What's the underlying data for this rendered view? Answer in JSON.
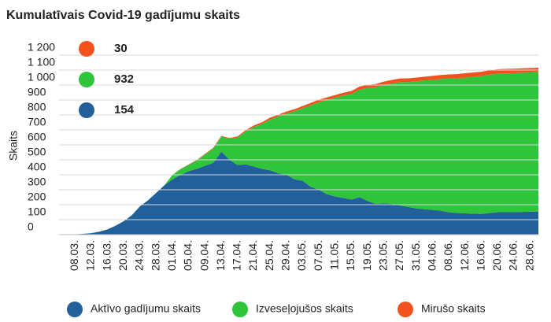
{
  "chart_data": {
    "type": "stacked_area",
    "title": "Kumulatīvais Covid-19 gadījumu skaits",
    "y_label": "Skaits",
    "categories": [
      null,
      "08.03.",
      null,
      "12.03.",
      null,
      "16.03.",
      null,
      "20.03.",
      null,
      "24.03.",
      null,
      "28.03.",
      null,
      "01.04.",
      null,
      "05.04.",
      null,
      "09.04.",
      null,
      "13.04.",
      null,
      "17.04.",
      null,
      "21.04.",
      null,
      "25.04.",
      null,
      "29.04.",
      null,
      "03.05.",
      null,
      "07.05.",
      null,
      "11.05.",
      null,
      "15.05.",
      null,
      "19.05.",
      null,
      "23.05.",
      null,
      "27.05.",
      null,
      "31.05.",
      null,
      "04.06.",
      null,
      "08.06.",
      null,
      "12.06.",
      null,
      "16.06.",
      null,
      "20.06.",
      null,
      "24.06.",
      null,
      "28.06.",
      null
    ],
    "series": [
      {
        "name": "Aktīvo gadījumu skaits",
        "color": "#22609c",
        "values": [
          0,
          2,
          5,
          10,
          20,
          35,
          60,
          90,
          130,
          190,
          230,
          280,
          330,
          370,
          400,
          425,
          440,
          460,
          480,
          555,
          500,
          465,
          470,
          455,
          440,
          430,
          410,
          400,
          370,
          360,
          320,
          300,
          270,
          255,
          245,
          235,
          250,
          225,
          205,
          210,
          205,
          195,
          185,
          175,
          170,
          165,
          160,
          150,
          145,
          142,
          140,
          138,
          145,
          150,
          150,
          150,
          152,
          153,
          154
        ]
      },
      {
        "name": "Izveseļojušos skaits",
        "color": "#2ec53b",
        "values": [
          0,
          0,
          0,
          0,
          0,
          0,
          0,
          0,
          0,
          0,
          0,
          0,
          0,
          30,
          39,
          43,
          57,
          76,
          95,
          100,
          140,
          185,
          220,
          265,
          300,
          340,
          380,
          410,
          455,
          485,
          545,
          585,
          630,
          660,
          685,
          705,
          720,
          755,
          780,
          790,
          805,
          825,
          835,
          850,
          860,
          870,
          880,
          893,
          900,
          908,
          915,
          922,
          924,
          926,
          928,
          929,
          930,
          931,
          932
        ]
      },
      {
        "name": "Mirušo skaits",
        "color": "#f3521f",
        "values": [
          0,
          0,
          0,
          0,
          0,
          0,
          0,
          0,
          0,
          0,
          0,
          0,
          0,
          0,
          1,
          2,
          3,
          4,
          5,
          5,
          6,
          7,
          9,
          10,
          11,
          12,
          12,
          13,
          14,
          15,
          16,
          17,
          18,
          18,
          19,
          20,
          20,
          21,
          22,
          23,
          24,
          24,
          25,
          25,
          26,
          26,
          27,
          28,
          28,
          29,
          29,
          29,
          30,
          30,
          30,
          30,
          30,
          30,
          30
        ]
      }
    ],
    "ylim": [
      0,
      1200
    ],
    "yticks": [
      0,
      100,
      200,
      300,
      400,
      500,
      600,
      700,
      800,
      900,
      {
        "value": 1000,
        "label": "1 000"
      },
      {
        "value": 1100,
        "label": "1 100"
      },
      {
        "value": 1200,
        "label": "1 200"
      }
    ],
    "grid": true
  }
}
